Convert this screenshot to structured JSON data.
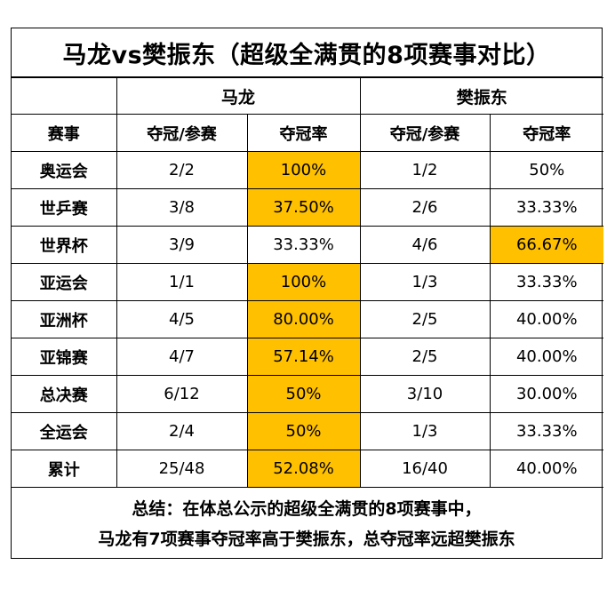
{
  "title": "马龙vs樊振东（超级全满贯的8项赛事对比）",
  "players": [
    "马龙",
    "樊振东"
  ],
  "columns": {
    "event": "赛事",
    "record": "夺冠/参赛",
    "rate": "夺冠率"
  },
  "highlight_color": "#ffc000",
  "rows": [
    {
      "event": "奥运会",
      "ma_record": "2/2",
      "ma_rate": "100%",
      "fan_record": "1/2",
      "fan_rate": "50%",
      "highlight": "ma"
    },
    {
      "event": "世乒赛",
      "ma_record": "3/8",
      "ma_rate": "37.50%",
      "fan_record": "2/6",
      "fan_rate": "33.33%",
      "highlight": "ma"
    },
    {
      "event": "世界杯",
      "ma_record": "3/9",
      "ma_rate": "33.33%",
      "fan_record": "4/6",
      "fan_rate": "66.67%",
      "highlight": "fan"
    },
    {
      "event": "亚运会",
      "ma_record": "1/1",
      "ma_rate": "100%",
      "fan_record": "1/3",
      "fan_rate": "33.33%",
      "highlight": "ma"
    },
    {
      "event": "亚洲杯",
      "ma_record": "4/5",
      "ma_rate": "80.00%",
      "fan_record": "2/5",
      "fan_rate": "40.00%",
      "highlight": "ma"
    },
    {
      "event": "亚锦赛",
      "ma_record": "4/7",
      "ma_rate": "57.14%",
      "fan_record": "2/5",
      "fan_rate": "40.00%",
      "highlight": "ma"
    },
    {
      "event": "总决赛",
      "ma_record": "6/12",
      "ma_rate": "50%",
      "fan_record": "3/10",
      "fan_rate": "30.00%",
      "highlight": "ma"
    },
    {
      "event": "全运会",
      "ma_record": "2/4",
      "ma_rate": "50%",
      "fan_record": "1/3",
      "fan_rate": "33.33%",
      "highlight": "ma"
    },
    {
      "event": "累计",
      "ma_record": "25/48",
      "ma_rate": "52.08%",
      "fan_record": "16/40",
      "fan_rate": "40.00%",
      "highlight": "ma"
    }
  ],
  "summary": [
    "总结：在体总公示的超级全满贯的8项赛事中，",
    "马龙有7项赛事夺冠率高于樊振东，总夺冠率远超樊振东"
  ]
}
